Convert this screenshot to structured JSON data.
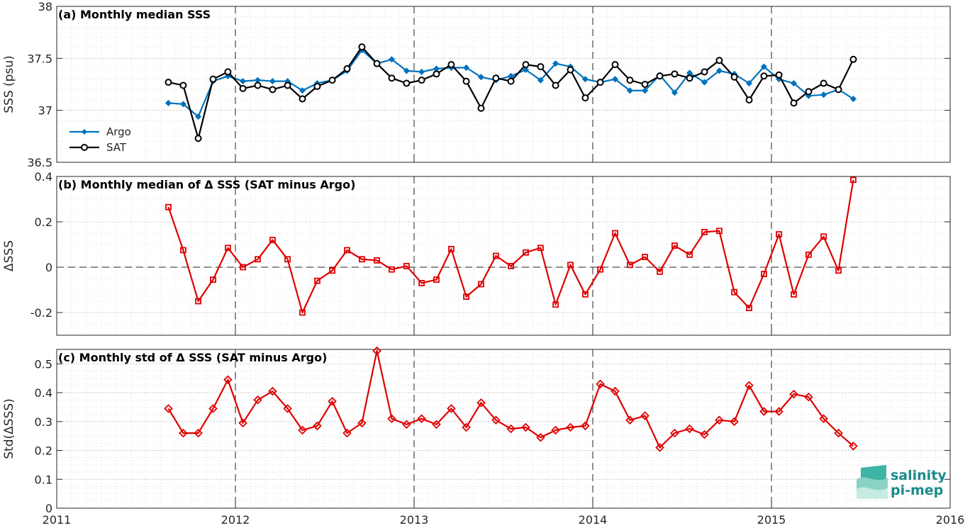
{
  "logo": {
    "line1": "salinity",
    "line2": "pi-mep"
  },
  "colors": {
    "argo": "#0072BD",
    "sat": "#000000",
    "delta": "#E00000"
  },
  "chart_data": [
    {
      "type": "line",
      "title": "(a) Monthly median SSS",
      "ylabel": "SSS (psu)",
      "xlabel": "",
      "xlim": [
        2011,
        2016
      ],
      "ylim": [
        36.5,
        38
      ],
      "yticks": [
        36.5,
        37,
        37.5,
        38
      ],
      "ytick_labels": [
        "36.5",
        "37",
        "37.5",
        "38"
      ],
      "grid": true,
      "legend": "bottom-left",
      "x": [
        2011.625,
        2011.708,
        2011.792,
        2011.875,
        2011.958,
        2012.042,
        2012.125,
        2012.208,
        2012.292,
        2012.375,
        2012.458,
        2012.542,
        2012.625,
        2012.708,
        2012.792,
        2012.875,
        2012.958,
        2013.042,
        2013.125,
        2013.208,
        2013.292,
        2013.375,
        2013.458,
        2013.542,
        2013.625,
        2013.708,
        2013.792,
        2013.875,
        2013.958,
        2014.042,
        2014.125,
        2014.208,
        2014.292,
        2014.375,
        2014.458,
        2014.542,
        2014.625,
        2014.708,
        2014.792,
        2014.875,
        2014.958,
        2015.042,
        2015.125,
        2015.208,
        2015.292,
        2015.375,
        2015.458
      ],
      "series": [
        {
          "name": "Argo",
          "marker": "diamond",
          "values": [
            37.07,
            37.06,
            36.94,
            37.28,
            37.33,
            37.28,
            37.29,
            37.28,
            37.28,
            37.19,
            37.26,
            37.29,
            37.38,
            37.58,
            37.45,
            37.49,
            37.38,
            37.37,
            37.4,
            37.41,
            37.41,
            37.32,
            37.29,
            37.33,
            37.39,
            37.29,
            37.45,
            37.42,
            37.3,
            37.27,
            37.3,
            37.19,
            37.19,
            37.34,
            37.17,
            37.36,
            37.27,
            37.38,
            37.35,
            37.26,
            37.42,
            37.3,
            37.26,
            37.14,
            37.15,
            37.2,
            37.11
          ]
        },
        {
          "name": "SAT",
          "marker": "circle",
          "values": [
            37.27,
            37.24,
            36.73,
            37.3,
            37.37,
            37.21,
            37.24,
            37.2,
            37.24,
            37.11,
            37.23,
            37.29,
            37.4,
            37.61,
            37.45,
            37.31,
            37.26,
            37.29,
            37.35,
            37.44,
            37.28,
            37.02,
            37.31,
            37.28,
            37.44,
            37.42,
            37.24,
            37.39,
            37.12,
            37.27,
            37.44,
            37.29,
            37.25,
            37.33,
            37.35,
            37.31,
            37.37,
            37.48,
            37.32,
            37.1,
            37.33,
            37.34,
            37.07,
            37.18,
            37.26,
            37.2,
            37.49
          ]
        }
      ]
    },
    {
      "type": "line",
      "title": "(b) Monthly median of Δ SSS (SAT minus Argo)",
      "ylabel": "ΔSSS",
      "xlabel": "",
      "xlim": [
        2011,
        2016
      ],
      "ylim": [
        -0.3,
        0.4
      ],
      "yticks": [
        -0.2,
        0,
        0.2,
        0.4
      ],
      "ytick_labels": [
        "-0.2",
        "0",
        "0.2",
        "0.4"
      ],
      "grid": true,
      "x": [
        2011.625,
        2011.708,
        2011.792,
        2011.875,
        2011.958,
        2012.042,
        2012.125,
        2012.208,
        2012.292,
        2012.375,
        2012.458,
        2012.542,
        2012.625,
        2012.708,
        2012.792,
        2012.875,
        2012.958,
        2013.042,
        2013.125,
        2013.208,
        2013.292,
        2013.375,
        2013.458,
        2013.542,
        2013.625,
        2013.708,
        2013.792,
        2013.875,
        2013.958,
        2014.042,
        2014.125,
        2014.208,
        2014.292,
        2014.375,
        2014.458,
        2014.542,
        2014.625,
        2014.708,
        2014.792,
        2014.875,
        2014.958,
        2015.042,
        2015.125,
        2015.208,
        2015.292,
        2015.375,
        2015.458
      ],
      "series": [
        {
          "name": "",
          "marker": "square",
          "values": [
            0.265,
            0.075,
            -0.15,
            -0.055,
            0.085,
            0.0,
            0.035,
            0.12,
            0.035,
            -0.2,
            -0.06,
            -0.015,
            0.075,
            0.035,
            0.03,
            -0.01,
            0.005,
            -0.07,
            -0.055,
            0.08,
            -0.13,
            -0.075,
            0.05,
            0.005,
            0.065,
            0.085,
            -0.165,
            0.01,
            -0.12,
            -0.01,
            0.15,
            0.01,
            0.045,
            -0.02,
            0.095,
            0.055,
            0.155,
            0.16,
            -0.11,
            -0.18,
            -0.03,
            0.145,
            -0.12,
            0.055,
            0.135,
            -0.015,
            0.385
          ]
        }
      ]
    },
    {
      "type": "line",
      "title": "(c) Monthly std of Δ SSS (SAT minus Argo)",
      "ylabel": "Std(ΔSSS)",
      "xlabel": "",
      "xlim": [
        2011,
        2016
      ],
      "ylim": [
        0,
        0.55
      ],
      "yticks": [
        0,
        0.1,
        0.2,
        0.3,
        0.4,
        0.5
      ],
      "ytick_labels": [
        "0",
        "0.1",
        "0.2",
        "0.3",
        "0.4",
        "0.5"
      ],
      "xticks": [
        2011,
        2012,
        2013,
        2014,
        2015,
        2016
      ],
      "xtick_labels": [
        "2011",
        "2012",
        "2013",
        "2014",
        "2015",
        "2016"
      ],
      "grid": true,
      "x": [
        2011.625,
        2011.708,
        2011.792,
        2011.875,
        2011.958,
        2012.042,
        2012.125,
        2012.208,
        2012.292,
        2012.375,
        2012.458,
        2012.542,
        2012.625,
        2012.708,
        2012.792,
        2012.875,
        2012.958,
        2013.042,
        2013.125,
        2013.208,
        2013.292,
        2013.375,
        2013.458,
        2013.542,
        2013.625,
        2013.708,
        2013.792,
        2013.875,
        2013.958,
        2014.042,
        2014.125,
        2014.208,
        2014.292,
        2014.375,
        2014.458,
        2014.542,
        2014.625,
        2014.708,
        2014.792,
        2014.875,
        2014.958,
        2015.042,
        2015.125,
        2015.208,
        2015.292,
        2015.375,
        2015.458
      ],
      "series": [
        {
          "name": "",
          "marker": "diamond",
          "values": [
            0.345,
            0.26,
            0.26,
            0.345,
            0.445,
            0.295,
            0.375,
            0.405,
            0.345,
            0.27,
            0.285,
            0.37,
            0.26,
            0.295,
            0.545,
            0.31,
            0.29,
            0.31,
            0.29,
            0.345,
            0.28,
            0.365,
            0.305,
            0.275,
            0.28,
            0.245,
            0.27,
            0.28,
            0.285,
            0.43,
            0.405,
            0.305,
            0.32,
            0.21,
            0.26,
            0.275,
            0.255,
            0.305,
            0.3,
            0.425,
            0.335,
            0.335,
            0.395,
            0.385,
            0.31,
            0.26,
            0.215
          ]
        }
      ]
    }
  ]
}
